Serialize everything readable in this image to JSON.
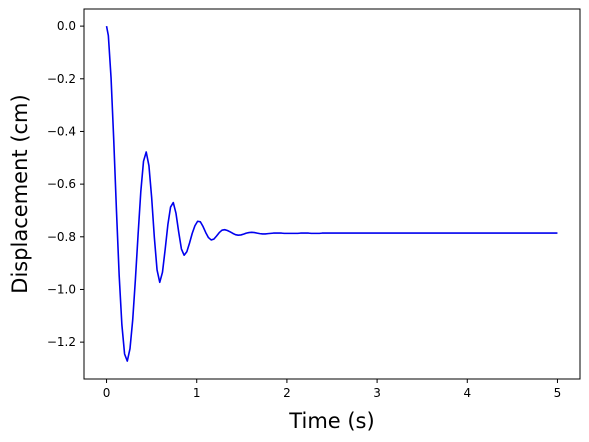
{
  "chart_data": {
    "type": "line",
    "title": "",
    "xlabel": "Time (s)",
    "ylabel": "Displacement (cm)",
    "xlim": [
      -0.25,
      5.25
    ],
    "ylim": [
      -1.34,
      0.065
    ],
    "xticks": [
      0,
      1,
      2,
      3,
      4,
      5
    ],
    "xtick_labels": [
      "0",
      "1",
      "2",
      "3",
      "4",
      "5"
    ],
    "yticks": [
      0.0,
      -0.2,
      -0.4,
      -0.6,
      -0.8,
      -1.0,
      -1.2
    ],
    "ytick_labels": [
      "0.0",
      "−0.2",
      "−0.4",
      "−0.6",
      "−0.8",
      "−1.0",
      "−1.2"
    ],
    "grid": false,
    "legend": "none",
    "series": [
      {
        "color": "#0000ee",
        "x": [
          0.0,
          0.02,
          0.05,
          0.08,
          0.11,
          0.14,
          0.17,
          0.2,
          0.23,
          0.26,
          0.29,
          0.32,
          0.35,
          0.38,
          0.41,
          0.44,
          0.47,
          0.5,
          0.53,
          0.56,
          0.59,
          0.62,
          0.65,
          0.68,
          0.71,
          0.74,
          0.77,
          0.8,
          0.83,
          0.86,
          0.89,
          0.92,
          0.95,
          0.98,
          1.01,
          1.04,
          1.07,
          1.1,
          1.13,
          1.16,
          1.19,
          1.22,
          1.25,
          1.28,
          1.31,
          1.34,
          1.37,
          1.4,
          1.43,
          1.46,
          1.49,
          1.52,
          1.55,
          1.58,
          1.61,
          1.64,
          1.67,
          1.7,
          1.73,
          1.76,
          1.79,
          1.82,
          1.85,
          1.88,
          1.91,
          1.94,
          1.97,
          2.0,
          2.03,
          2.06,
          2.09,
          2.12,
          2.15,
          2.18,
          2.21,
          2.24,
          2.27,
          2.3,
          2.33,
          2.36,
          2.39,
          2.42,
          2.45,
          2.48,
          2.51,
          2.54,
          2.57,
          2.6,
          2.63,
          2.66,
          2.69,
          2.72,
          2.75,
          2.78,
          2.81,
          2.84,
          2.87,
          2.9,
          2.93,
          2.96,
          2.99,
          3.1,
          3.3,
          3.5,
          3.75,
          4.0,
          4.5,
          5.0
        ],
        "y": [
          0.0,
          -0.036,
          -0.196,
          -0.434,
          -0.701,
          -0.947,
          -1.134,
          -1.245,
          -1.272,
          -1.225,
          -1.116,
          -0.962,
          -0.79,
          -0.628,
          -0.513,
          -0.478,
          -0.53,
          -0.65,
          -0.802,
          -0.926,
          -0.973,
          -0.935,
          -0.848,
          -0.754,
          -0.687,
          -0.67,
          -0.711,
          -0.782,
          -0.846,
          -0.87,
          -0.857,
          -0.824,
          -0.787,
          -0.758,
          -0.741,
          -0.743,
          -0.761,
          -0.784,
          -0.803,
          -0.812,
          -0.809,
          -0.797,
          -0.784,
          -0.775,
          -0.773,
          -0.776,
          -0.781,
          -0.787,
          -0.792,
          -0.794,
          -0.793,
          -0.79,
          -0.786,
          -0.784,
          -0.783,
          -0.784,
          -0.786,
          -0.788,
          -0.789,
          -0.789,
          -0.788,
          -0.787,
          -0.786,
          -0.786,
          -0.786,
          -0.786,
          -0.787,
          -0.787,
          -0.787,
          -0.787,
          -0.787,
          -0.787,
          -0.786,
          -0.786,
          -0.786,
          -0.786,
          -0.787,
          -0.787,
          -0.787,
          -0.787,
          -0.786,
          -0.786,
          -0.786,
          -0.786,
          -0.786,
          -0.786,
          -0.786,
          -0.786,
          -0.786,
          -0.786,
          -0.786,
          -0.786,
          -0.786,
          -0.786,
          -0.786,
          -0.786,
          -0.786,
          -0.786,
          -0.786,
          -0.786,
          -0.786,
          -0.786,
          -0.786,
          -0.786,
          -0.786,
          -0.786,
          -0.786,
          -0.786
        ]
      }
    ]
  }
}
